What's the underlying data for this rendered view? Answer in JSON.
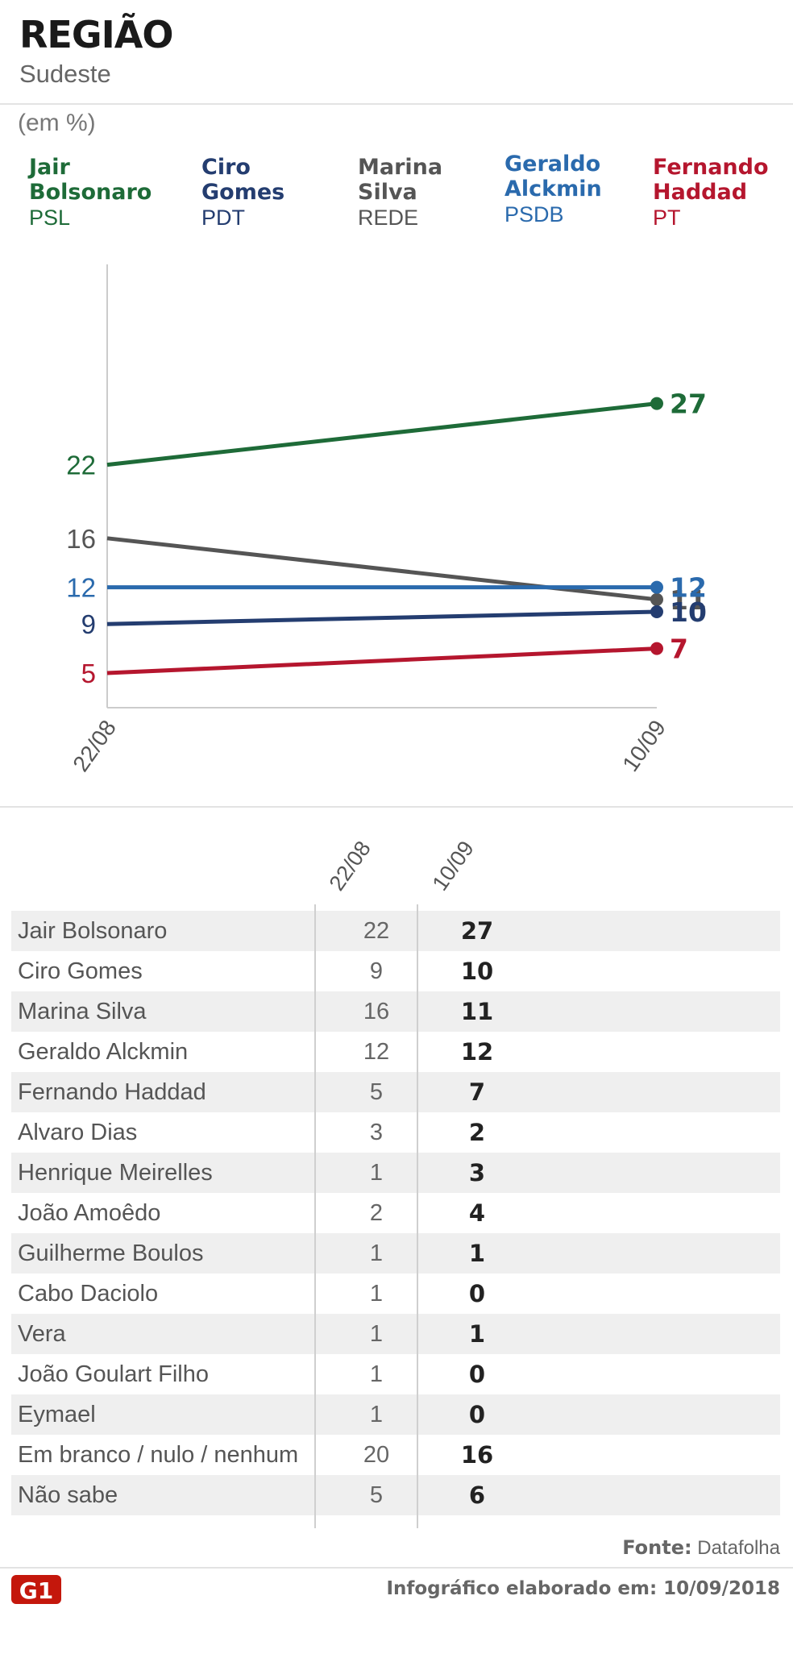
{
  "header": {
    "title": "REGIÃO",
    "subtitle": "Sudeste"
  },
  "unit_label": "(em %)",
  "legend": [
    {
      "name": "Jair\nBolsonaro",
      "party": "PSL",
      "color": "#1e6b38"
    },
    {
      "name": "Ciro\nGomes",
      "party": "PDT",
      "color": "#243d70"
    },
    {
      "name": "Marina\nSilva",
      "party": "REDE",
      "color": "#555555"
    },
    {
      "name": "Geraldo\nAlckmin",
      "party": "PSDB",
      "color": "#2a6aad"
    },
    {
      "name": "Fernando\nHaddad",
      "party": "PT",
      "color": "#b5162e"
    }
  ],
  "chart_data": {
    "type": "line",
    "x": [
      "22/08",
      "10/09"
    ],
    "ylim": [
      0,
      30
    ],
    "series": [
      {
        "name": "Jair Bolsonaro",
        "color": "#1e6b38",
        "values": [
          22,
          27
        ]
      },
      {
        "name": "Marina Silva",
        "color": "#555555",
        "values": [
          16,
          11
        ]
      },
      {
        "name": "Geraldo Alckmin",
        "color": "#2a6aad",
        "values": [
          12,
          12
        ]
      },
      {
        "name": "Ciro Gomes",
        "color": "#243d70",
        "values": [
          9,
          10
        ]
      },
      {
        "name": "Fernando Haddad",
        "color": "#b5162e",
        "values": [
          5,
          7
        ]
      }
    ]
  },
  "table": {
    "columns": [
      "22/08",
      "10/09"
    ],
    "rows": [
      {
        "name": "Jair Bolsonaro",
        "a": "22",
        "b": "27"
      },
      {
        "name": "Ciro Gomes",
        "a": "9",
        "b": "10"
      },
      {
        "name": "Marina Silva",
        "a": "16",
        "b": "11"
      },
      {
        "name": "Geraldo Alckmin",
        "a": "12",
        "b": "12"
      },
      {
        "name": "Fernando Haddad",
        "a": "5",
        "b": "7"
      },
      {
        "name": "Alvaro Dias",
        "a": "3",
        "b": "2"
      },
      {
        "name": "Henrique Meirelles",
        "a": "1",
        "b": "3"
      },
      {
        "name": "João Amoêdo",
        "a": "2",
        "b": "4"
      },
      {
        "name": "Guilherme Boulos",
        "a": "1",
        "b": "1"
      },
      {
        "name": "Cabo Daciolo",
        "a": "1",
        "b": "0"
      },
      {
        "name": "Vera",
        "a": "1",
        "b": "1"
      },
      {
        "name": "João Goulart Filho",
        "a": "1",
        "b": "0"
      },
      {
        "name": "Eymael",
        "a": "1",
        "b": "0"
      },
      {
        "name": "Em branco / nulo / nenhum",
        "a": "20",
        "b": "16"
      },
      {
        "name": "Não sabe",
        "a": "5",
        "b": "6"
      }
    ]
  },
  "footer": {
    "source_label": "Fonte:",
    "source": "Datafolha",
    "credit": "Infográfico elaborado em: 10/09/2018",
    "logo_text": "G1",
    "logo_color": "#c4170c"
  }
}
